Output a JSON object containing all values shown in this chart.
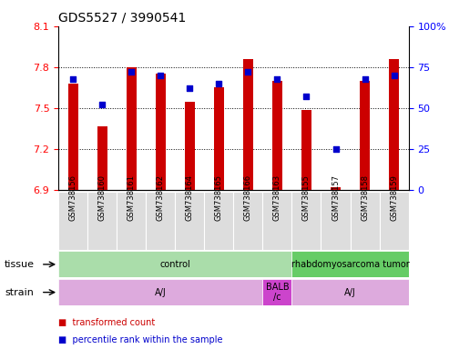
{
  "title": "GDS5527 / 3990541",
  "samples": [
    "GSM738156",
    "GSM738160",
    "GSM738161",
    "GSM738162",
    "GSM738164",
    "GSM738165",
    "GSM738166",
    "GSM738163",
    "GSM738155",
    "GSM738157",
    "GSM738158",
    "GSM738159"
  ],
  "bar_values": [
    7.68,
    7.37,
    7.8,
    7.75,
    7.55,
    7.65,
    7.86,
    7.7,
    7.49,
    6.92,
    7.7,
    7.86
  ],
  "percentile_values": [
    68,
    52,
    72,
    70,
    62,
    65,
    72,
    68,
    57,
    25,
    68,
    70
  ],
  "y_min": 6.9,
  "y_max": 8.1,
  "y_ticks": [
    6.9,
    7.2,
    7.5,
    7.8,
    8.1
  ],
  "y_tick_labels": [
    "6.9",
    "7.2",
    "7.5",
    "7.8",
    "8.1"
  ],
  "right_y_ticks": [
    0,
    25,
    50,
    75,
    100
  ],
  "right_y_tick_labels": [
    "0",
    "25",
    "50",
    "75",
    "100%"
  ],
  "bar_color": "#cc0000",
  "dot_color": "#0000cc",
  "tissue_control_color": "#aaddaa",
  "tissue_tumor_color": "#66cc66",
  "strain_aj_color": "#ddaadd",
  "strain_balb_color": "#cc44cc",
  "tissue_blocks": [
    {
      "text": "control",
      "start": 0,
      "end": 8
    },
    {
      "text": "rhabdomyosarcoma tumor",
      "start": 8,
      "end": 12
    }
  ],
  "strain_blocks": [
    {
      "text": "A/J",
      "start": 0,
      "end": 7
    },
    {
      "text": "BALB\n/c",
      "start": 7,
      "end": 8
    },
    {
      "text": "A/J",
      "start": 8,
      "end": 12
    }
  ],
  "tissue_row_label": "tissue",
  "strain_row_label": "strain",
  "legend_items": [
    {
      "label": "transformed count",
      "color": "#cc0000"
    },
    {
      "label": "percentile rank within the sample",
      "color": "#0000cc"
    }
  ],
  "bar_width": 0.35,
  "title_fontsize": 10,
  "tick_fontsize": 8,
  "sample_fontsize": 6,
  "label_fontsize": 8,
  "annotation_fontsize": 7
}
